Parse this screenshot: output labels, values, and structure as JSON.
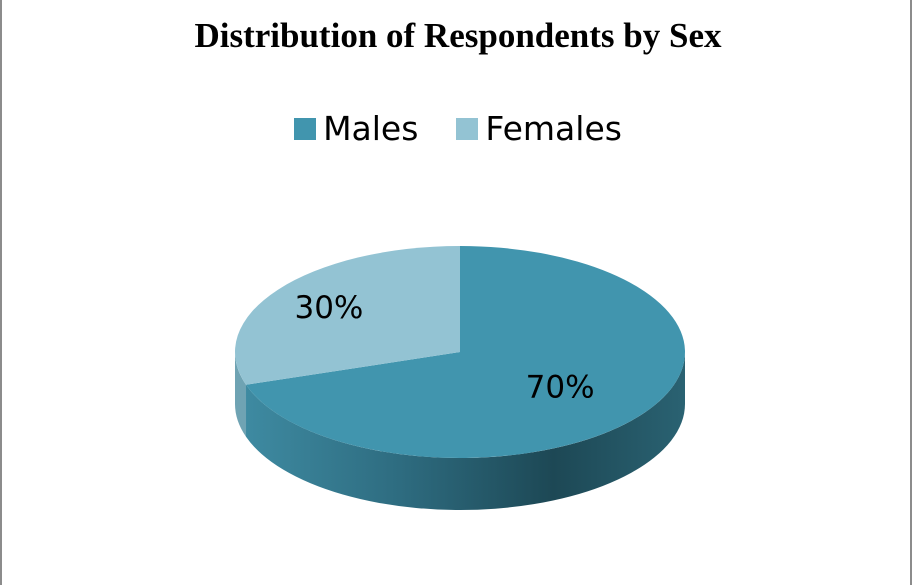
{
  "chart_data": {
    "type": "pie",
    "title": "Distribution of Respondents by Sex",
    "categories": [
      "Males",
      "Females"
    ],
    "values": [
      70,
      30
    ],
    "data_labels": [
      "70%",
      "30%"
    ],
    "legend_position": "top",
    "style": "3d",
    "colors": [
      "#4195ae",
      "#93c3d3"
    ],
    "side_colors": [
      "#2f6f83",
      "#6fa3b3"
    ]
  }
}
